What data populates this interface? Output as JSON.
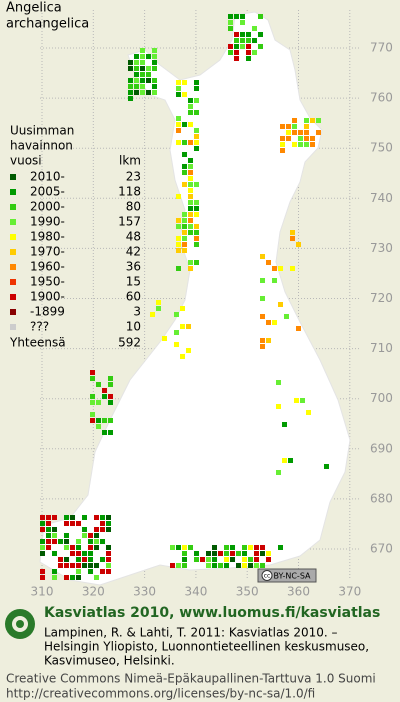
{
  "title": [
    "Angelica",
    "archangelica"
  ],
  "legend": {
    "heading": [
      "Uusimman",
      "havainnon",
      "vuosi"
    ],
    "count_heading": "lkm",
    "rows": [
      {
        "label": "2010-",
        "count": 23,
        "color": "#005a00"
      },
      {
        "label": "2005-",
        "count": 118,
        "color": "#009a00"
      },
      {
        "label": "2000-",
        "count": 80,
        "color": "#33cc11"
      },
      {
        "label": "1990-",
        "count": 157,
        "color": "#66ee33"
      },
      {
        "label": "1980-",
        "count": 48,
        "color": "#ffff00"
      },
      {
        "label": "1970-",
        "count": 42,
        "color": "#ffcc00"
      },
      {
        "label": "1960-",
        "count": 36,
        "color": "#ff8800"
      },
      {
        "label": "1950-",
        "count": 15,
        "color": "#ee3300"
      },
      {
        "label": "1900-",
        "count": 60,
        "color": "#cc0000"
      },
      {
        "label": "-1899",
        "count": 3,
        "color": "#880000"
      },
      {
        "label": "???",
        "count": 10,
        "color": "#cccccc"
      }
    ],
    "total_label": "Yhteensä",
    "total": 592
  },
  "y_grid": [
    770,
    760,
    750,
    740,
    730,
    720,
    710,
    700,
    690,
    680,
    670
  ],
  "x_grid": [
    310,
    320,
    330,
    340,
    350,
    360,
    370
  ],
  "badge": {
    "cc": "cc",
    "text": "BY-NC-SA"
  },
  "footer": {
    "brand": "Kasviatlas 2010, www.luomus.fi/kasviatlas",
    "citation": [
      "Lampinen, R. & Lahti, T. 2011: Kasviatlas 2010. –",
      "Helsingin Yliopisto, Luonnontieteellinen keskusmuseo,",
      "Kasvimuseo, Helsinki."
    ],
    "license": [
      "Creative Commons Nimeä-Epäkaupallinen-Tarttuva 1.0 Suomi",
      "http://creativecommons.org/licenses/by-nc-sa/1.0/fi"
    ]
  }
}
